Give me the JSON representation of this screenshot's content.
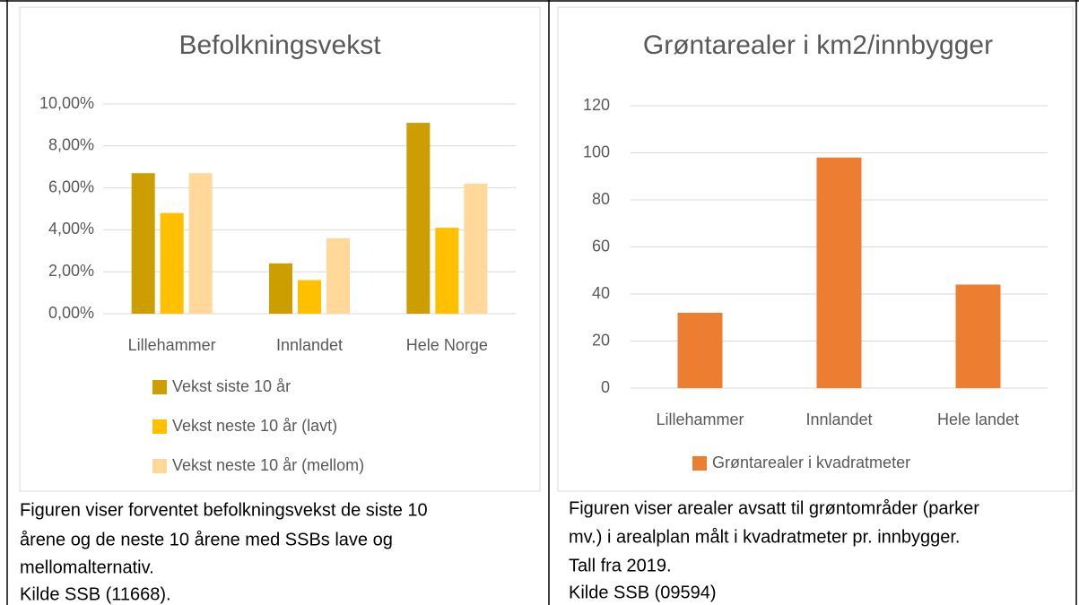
{
  "chart_data": [
    {
      "type": "bar",
      "title": "Befolkningsvekst",
      "categories": [
        "Lillehammer",
        "Innlandet",
        "Hele Norge"
      ],
      "series": [
        {
          "name": "Vekst siste 10 år",
          "color": "#cc9e00",
          "values": [
            6.7,
            2.4,
            9.1
          ]
        },
        {
          "name": "Vekst neste 10 år (lavt)",
          "color": "#ffc000",
          "values": [
            4.8,
            1.6,
            4.1
          ]
        },
        {
          "name": "Vekst neste 10 år (mellom)",
          "color": "#ffd89a",
          "values": [
            6.7,
            3.6,
            6.2
          ]
        }
      ],
      "ylim": [
        0,
        10
      ],
      "yticks": [
        {
          "value": 0,
          "label": "0,00%"
        },
        {
          "value": 2,
          "label": "2,00%"
        },
        {
          "value": 4,
          "label": "4,00%"
        },
        {
          "value": 6,
          "label": "6,00%"
        },
        {
          "value": 8,
          "label": "8,00%"
        },
        {
          "value": 10,
          "label": "10,00%"
        }
      ],
      "grid": true,
      "legend": "bottom"
    },
    {
      "type": "bar",
      "title": "Grøntarealer i km2/innbygger",
      "categories": [
        "Lillehammer",
        "Innlandet",
        "Hele landet"
      ],
      "series": [
        {
          "name": "Grøntarealer i kvadratmeter",
          "color": "#ed7d31",
          "values": [
            32,
            98,
            44
          ]
        }
      ],
      "ylim": [
        0,
        120
      ],
      "yticks": [
        0,
        20,
        40,
        60,
        80,
        100,
        120
      ],
      "grid": true,
      "legend": "bottom"
    }
  ],
  "captions": [
    [
      "Figuren viser forventet befolkningsvekst de siste 10",
      "årene og de neste 10 årene med SSBs lave og",
      "mellomalternativ.",
      "Kilde SSB (11668)."
    ],
    [
      "Figuren viser arealer avsatt til grøntområder (parker",
      "mv.) i arealplan målt i kvadratmeter pr. innbygger.",
      "Tall fra 2019.",
      "Kilde SSB (09594)"
    ]
  ]
}
